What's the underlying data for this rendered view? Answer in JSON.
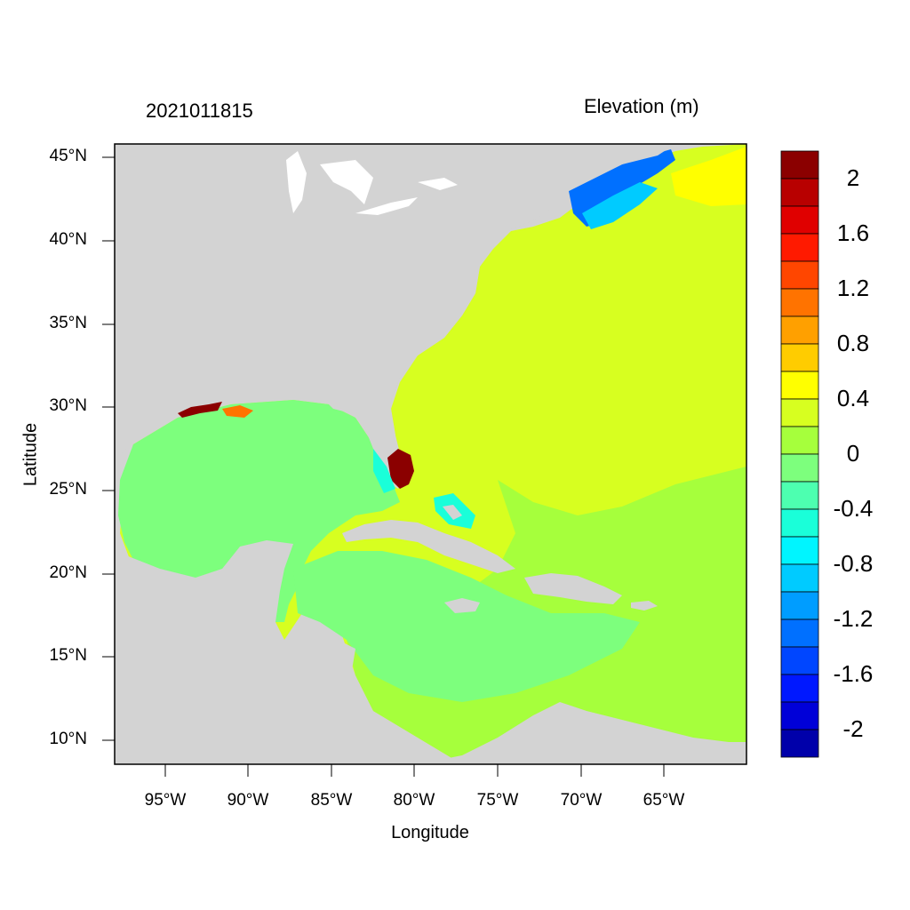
{
  "figure": {
    "timestamp": "2021011815",
    "variable_title": "Elevation (m)",
    "xlabel": "Longitude",
    "ylabel": "Latitude"
  },
  "axes": {
    "y_ticks": [
      "45°N",
      "40°N",
      "35°N",
      "30°N",
      "25°N",
      "20°N",
      "15°N",
      "10°N"
    ],
    "x_ticks": [
      "95°W",
      "90°W",
      "85°W",
      "80°W",
      "75°W",
      "70°W",
      "65°W"
    ]
  },
  "colorbar": {
    "labels": [
      "2",
      "1.6",
      "1.2",
      "0.8",
      "0.4",
      "0",
      "-0.4",
      "-0.8",
      "-1.2",
      "-1.6",
      "-2"
    ],
    "colors": [
      "#8b0000",
      "#b80000",
      "#e00000",
      "#ff1a00",
      "#ff4600",
      "#ff7300",
      "#ffa000",
      "#ffcc00",
      "#ffff00",
      "#d7ff20",
      "#a6ff3c",
      "#7dff7d",
      "#4dffb0",
      "#1affd9",
      "#00f5ff",
      "#00cbff",
      "#009dff",
      "#0070ff",
      "#0046ff",
      "#0018ff",
      "#0000d8",
      "#0000aa"
    ]
  },
  "map_colors": {
    "land": "#d3d3d3",
    "lakes": "#ffffff",
    "gulf": "#7dff7d",
    "atlantic_near": "#d7ff20",
    "atlantic_south": "#a6ff3c",
    "surge_high": "#8b0000",
    "gulf_of_maine": "#0070ff",
    "nova_scotia_high": "#ffff00"
  }
}
